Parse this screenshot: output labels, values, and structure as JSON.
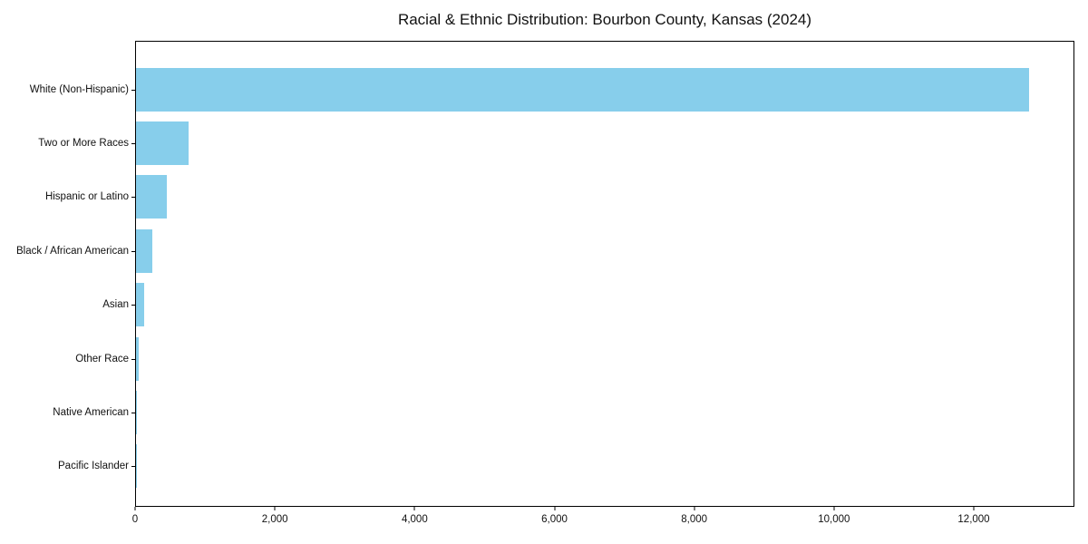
{
  "page": {
    "background_color": "#ffffff",
    "text_color": "#111111"
  },
  "chart_data": {
    "type": "bar",
    "orientation": "horizontal",
    "title": "Racial & Ethnic Distribution: Bourbon County, Kansas (2024)",
    "categories": [
      "White (Non-Hispanic)",
      "Two or More Races",
      "Hispanic or Latino",
      "Black / African American",
      "Asian",
      "Other Race",
      "Native American",
      "Pacific Islander"
    ],
    "values": [
      12800,
      750,
      440,
      230,
      115,
      40,
      10,
      5
    ],
    "xlabel": "",
    "ylabel": "",
    "xlim": [
      0,
      13440
    ],
    "x_ticks": [
      0,
      2000,
      4000,
      6000,
      8000,
      10000,
      12000
    ],
    "x_tick_labels": [
      "0",
      "2,000",
      "4,000",
      "6,000",
      "8,000",
      "10,000",
      "12,000"
    ],
    "bar_color": "#87CEEB",
    "axis_color": "#000000",
    "grid": false,
    "legend": null,
    "frame": "full-box"
  }
}
